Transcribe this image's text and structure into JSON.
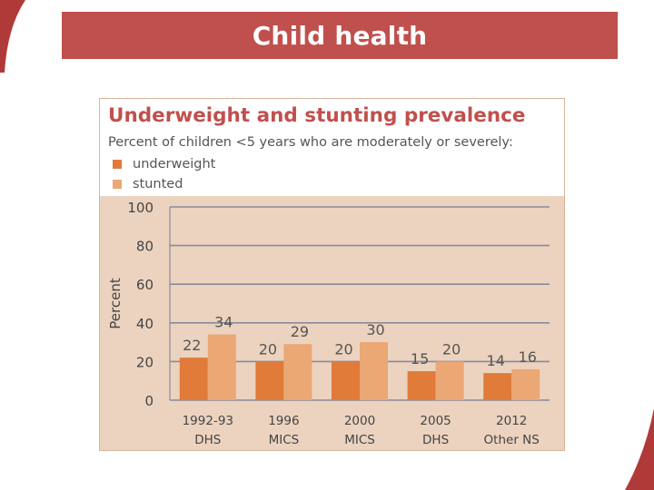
{
  "slide": {
    "title": "Child health"
  },
  "colors": {
    "accent": "#c0504d",
    "underweight": "#e07b39",
    "stunted": "#eba774",
    "plot_bg": "#ecd3bf",
    "grid": "#8a8a9a"
  },
  "chart_data": {
    "type": "bar",
    "title": "Underweight and stunting prevalence",
    "subtitle": "Percent of children <5 years who are moderately or severely:",
    "ylabel": "Percent",
    "xlabel": "",
    "ylim": [
      0,
      100
    ],
    "yticks": [
      "0",
      "20",
      "40",
      "60",
      "80",
      "100"
    ],
    "grid": true,
    "legend_position": "top-left",
    "categories": [
      {
        "line1": "1992-93",
        "line2": "DHS"
      },
      {
        "line1": "1996",
        "line2": "MICS"
      },
      {
        "line1": "2000",
        "line2": "MICS"
      },
      {
        "line1": "2005",
        "line2": "DHS"
      },
      {
        "line1": "2012",
        "line2": "Other NS"
      }
    ],
    "series": [
      {
        "name": "underweight",
        "values": [
          22,
          20,
          20,
          15,
          14
        ]
      },
      {
        "name": "stunted",
        "values": [
          34,
          29,
          30,
          20,
          16
        ]
      }
    ]
  }
}
